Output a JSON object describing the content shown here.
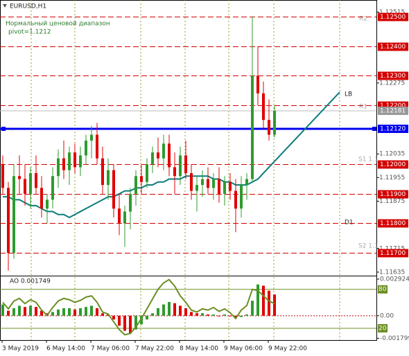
{
  "chart_data": {
    "type": "candlestick",
    "title": "EURUSD,H1",
    "indicator_name": "Нормальный ценовой диапазон",
    "pivot_text": "pivot=1.1212",
    "ylim": [
      1.11623,
      1.12556
    ],
    "yticks": [
      1.12515,
      1.12275,
      1.12035,
      1.11955,
      1.11875,
      1.11715,
      1.11635
    ],
    "levels": [
      {
        "value": 1.125,
        "label": "1.12500"
      },
      {
        "value": 1.124,
        "label": "1.12400"
      },
      {
        "value": 1.123,
        "label": "1.12300"
      },
      {
        "value": 1.122,
        "label": "1.12200"
      },
      {
        "value": 1.12,
        "label": "1.12000"
      },
      {
        "value": 1.119,
        "label": "1.11900"
      },
      {
        "value": 1.118,
        "label": "1.11800"
      },
      {
        "value": 1.117,
        "label": "1.11700"
      }
    ],
    "level_color": "#d40000",
    "pivot": {
      "value": 1.1212,
      "label": "1.12120"
    },
    "pivot_color": "#0000ee",
    "current_price": 1.12181,
    "annotations": [
      "R2",
      "R1",
      "S1 1.1",
      "S2 1.1",
      "D1"
    ],
    "x_labels": [
      "3 May 2019",
      "6 May 14:00",
      "7 May 06:00",
      "7 May 22:00",
      "8 May 14:00",
      "9 May 06:00",
      "9 May 22:00"
    ],
    "up_color": "#2e9b2e",
    "down_color": "#e00000",
    "open": [
      1.12,
      1.1192,
      1.117,
      1.1196,
      1.1195,
      1.119,
      1.1197,
      1.1192,
      1.1185,
      1.1188,
      1.1196,
      1.1202,
      1.1198,
      1.1204,
      1.1199,
      1.1203,
      1.1208,
      1.121,
      1.1202,
      1.1193,
      1.1198,
      1.1185,
      1.118,
      1.1184,
      1.119,
      1.1196,
      1.1194,
      1.12,
      1.1204,
      1.1202,
      1.1207,
      1.1199,
      1.1196,
      1.1203,
      1.1197,
      1.1191,
      1.1193,
      1.1195,
      1.1192,
      1.1195,
      1.119,
      1.1194,
      1.1191,
      1.1185,
      1.1193,
      1.1195,
      1.123,
      1.1224,
      1.1215,
      1.121
    ],
    "high": [
      1.1203,
      1.1194,
      1.12,
      1.1203,
      1.12,
      1.1199,
      1.1203,
      1.1196,
      1.119,
      1.1199,
      1.1205,
      1.1208,
      1.1206,
      1.1207,
      1.1206,
      1.121,
      1.1213,
      1.1214,
      1.1206,
      1.1202,
      1.12,
      1.119,
      1.1186,
      1.1192,
      1.1198,
      1.12,
      1.1202,
      1.1206,
      1.1209,
      1.121,
      1.121,
      1.1204,
      1.1206,
      1.1208,
      1.12,
      1.1196,
      1.1198,
      1.1199,
      1.1197,
      1.1199,
      1.1196,
      1.1197,
      1.1195,
      1.1196,
      1.1197,
      1.125,
      1.124,
      1.1228,
      1.1222,
      1.122
    ],
    "low": [
      1.119,
      1.1164,
      1.1168,
      1.119,
      1.1186,
      1.1185,
      1.119,
      1.1182,
      1.118,
      1.1185,
      1.1192,
      1.1195,
      1.1193,
      1.1197,
      1.1196,
      1.12,
      1.1202,
      1.12,
      1.119,
      1.1188,
      1.1182,
      1.1176,
      1.1172,
      1.1178,
      1.1186,
      1.119,
      1.1192,
      1.1197,
      1.1199,
      1.1198,
      1.1196,
      1.119,
      1.1193,
      1.1195,
      1.1188,
      1.1184,
      1.1189,
      1.119,
      1.1188,
      1.1187,
      1.1186,
      1.1188,
      1.1177,
      1.1182,
      1.1188,
      1.1194,
      1.122,
      1.1212,
      1.1208,
      1.1209
    ],
    "close": [
      1.1192,
      1.117,
      1.1196,
      1.1195,
      1.119,
      1.1197,
      1.1192,
      1.1185,
      1.1188,
      1.1196,
      1.1202,
      1.1198,
      1.1204,
      1.1199,
      1.1203,
      1.1208,
      1.121,
      1.1202,
      1.1193,
      1.1198,
      1.1185,
      1.118,
      1.1184,
      1.119,
      1.1196,
      1.1194,
      1.12,
      1.1204,
      1.1202,
      1.1207,
      1.1199,
      1.1196,
      1.1203,
      1.1197,
      1.1191,
      1.1193,
      1.1195,
      1.1192,
      1.1195,
      1.119,
      1.1194,
      1.1191,
      1.1185,
      1.1193,
      1.1195,
      1.123,
      1.1224,
      1.1215,
      1.121,
      1.12181
    ],
    "ma": [
      1.1189,
      1.1189,
      1.1188,
      1.1188,
      1.1187,
      1.1186,
      1.1186,
      1.1185,
      1.1184,
      1.1184,
      1.1183,
      1.1183,
      1.1182,
      1.1183,
      1.1184,
      1.1185,
      1.1186,
      1.1187,
      1.1188,
      1.1189,
      1.1189,
      1.119,
      1.1191,
      1.1191,
      1.1192,
      1.1192,
      1.1193,
      1.1193,
      1.1194,
      1.1194,
      1.1195,
      1.1195,
      1.1195,
      1.1196,
      1.1196,
      1.1196,
      1.1196,
      1.1196,
      1.1195,
      1.1195,
      1.1194,
      1.1194,
      1.1193,
      1.1193,
      1.1193,
      1.1194,
      1.1195,
      1.1197,
      1.1199,
      1.1201
    ],
    "ma_color": "#0b7b7b",
    "lb": {
      "label": "LB",
      "values": [
        1.1201,
        1.12244
      ]
    },
    "oscillator": {
      "label": "AO 0.001749",
      "ylim": [
        -0.001889,
        0.003146
      ],
      "yticks": [
        0.002924,
        {
          "value": 0,
          "label": "0.00"
        },
        -0.001799
      ],
      "y2lim": [
        2.9,
        100
      ],
      "y2ticks": [
        80,
        20
      ],
      "values": [
        0.0009,
        0.0004,
        0.0006,
        0.0008,
        0.0007,
        0.0008,
        0.0007,
        0.0004,
        0.0002,
        0.0003,
        0.0005,
        0.0006,
        0.0006,
        0.0005,
        0.0006,
        0.0007,
        0.0008,
        0.0006,
        0.0002,
        0.0001,
        -0.0003,
        -0.0008,
        -0.0012,
        -0.0014,
        -0.0011,
        -0.0007,
        -0.0003,
        0.0002,
        0.0006,
        0.0009,
        0.0011,
        0.001,
        0.0008,
        0.0006,
        0.0003,
        0.0002,
        0.0002,
        0.0001,
        0.0001,
        0.0,
        0.0001,
        0.0,
        -0.0002,
        -0.0001,
        0.0001,
        0.0012,
        0.0025,
        0.0024,
        0.002,
        0.0017
      ],
      "line": {
        "axis": "y2",
        "color": "#6b8e23",
        "values": [
          60,
          50,
          62,
          66,
          58,
          64,
          60,
          48,
          40,
          52,
          62,
          66,
          64,
          60,
          63,
          68,
          70,
          60,
          45,
          42,
          30,
          18,
          10,
          12,
          22,
          35,
          50,
          65,
          80,
          90,
          95,
          85,
          70,
          60,
          48,
          45,
          50,
          48,
          52,
          46,
          50,
          44,
          35,
          48,
          55,
          80,
          78,
          70,
          62,
          58
        ]
      }
    }
  }
}
